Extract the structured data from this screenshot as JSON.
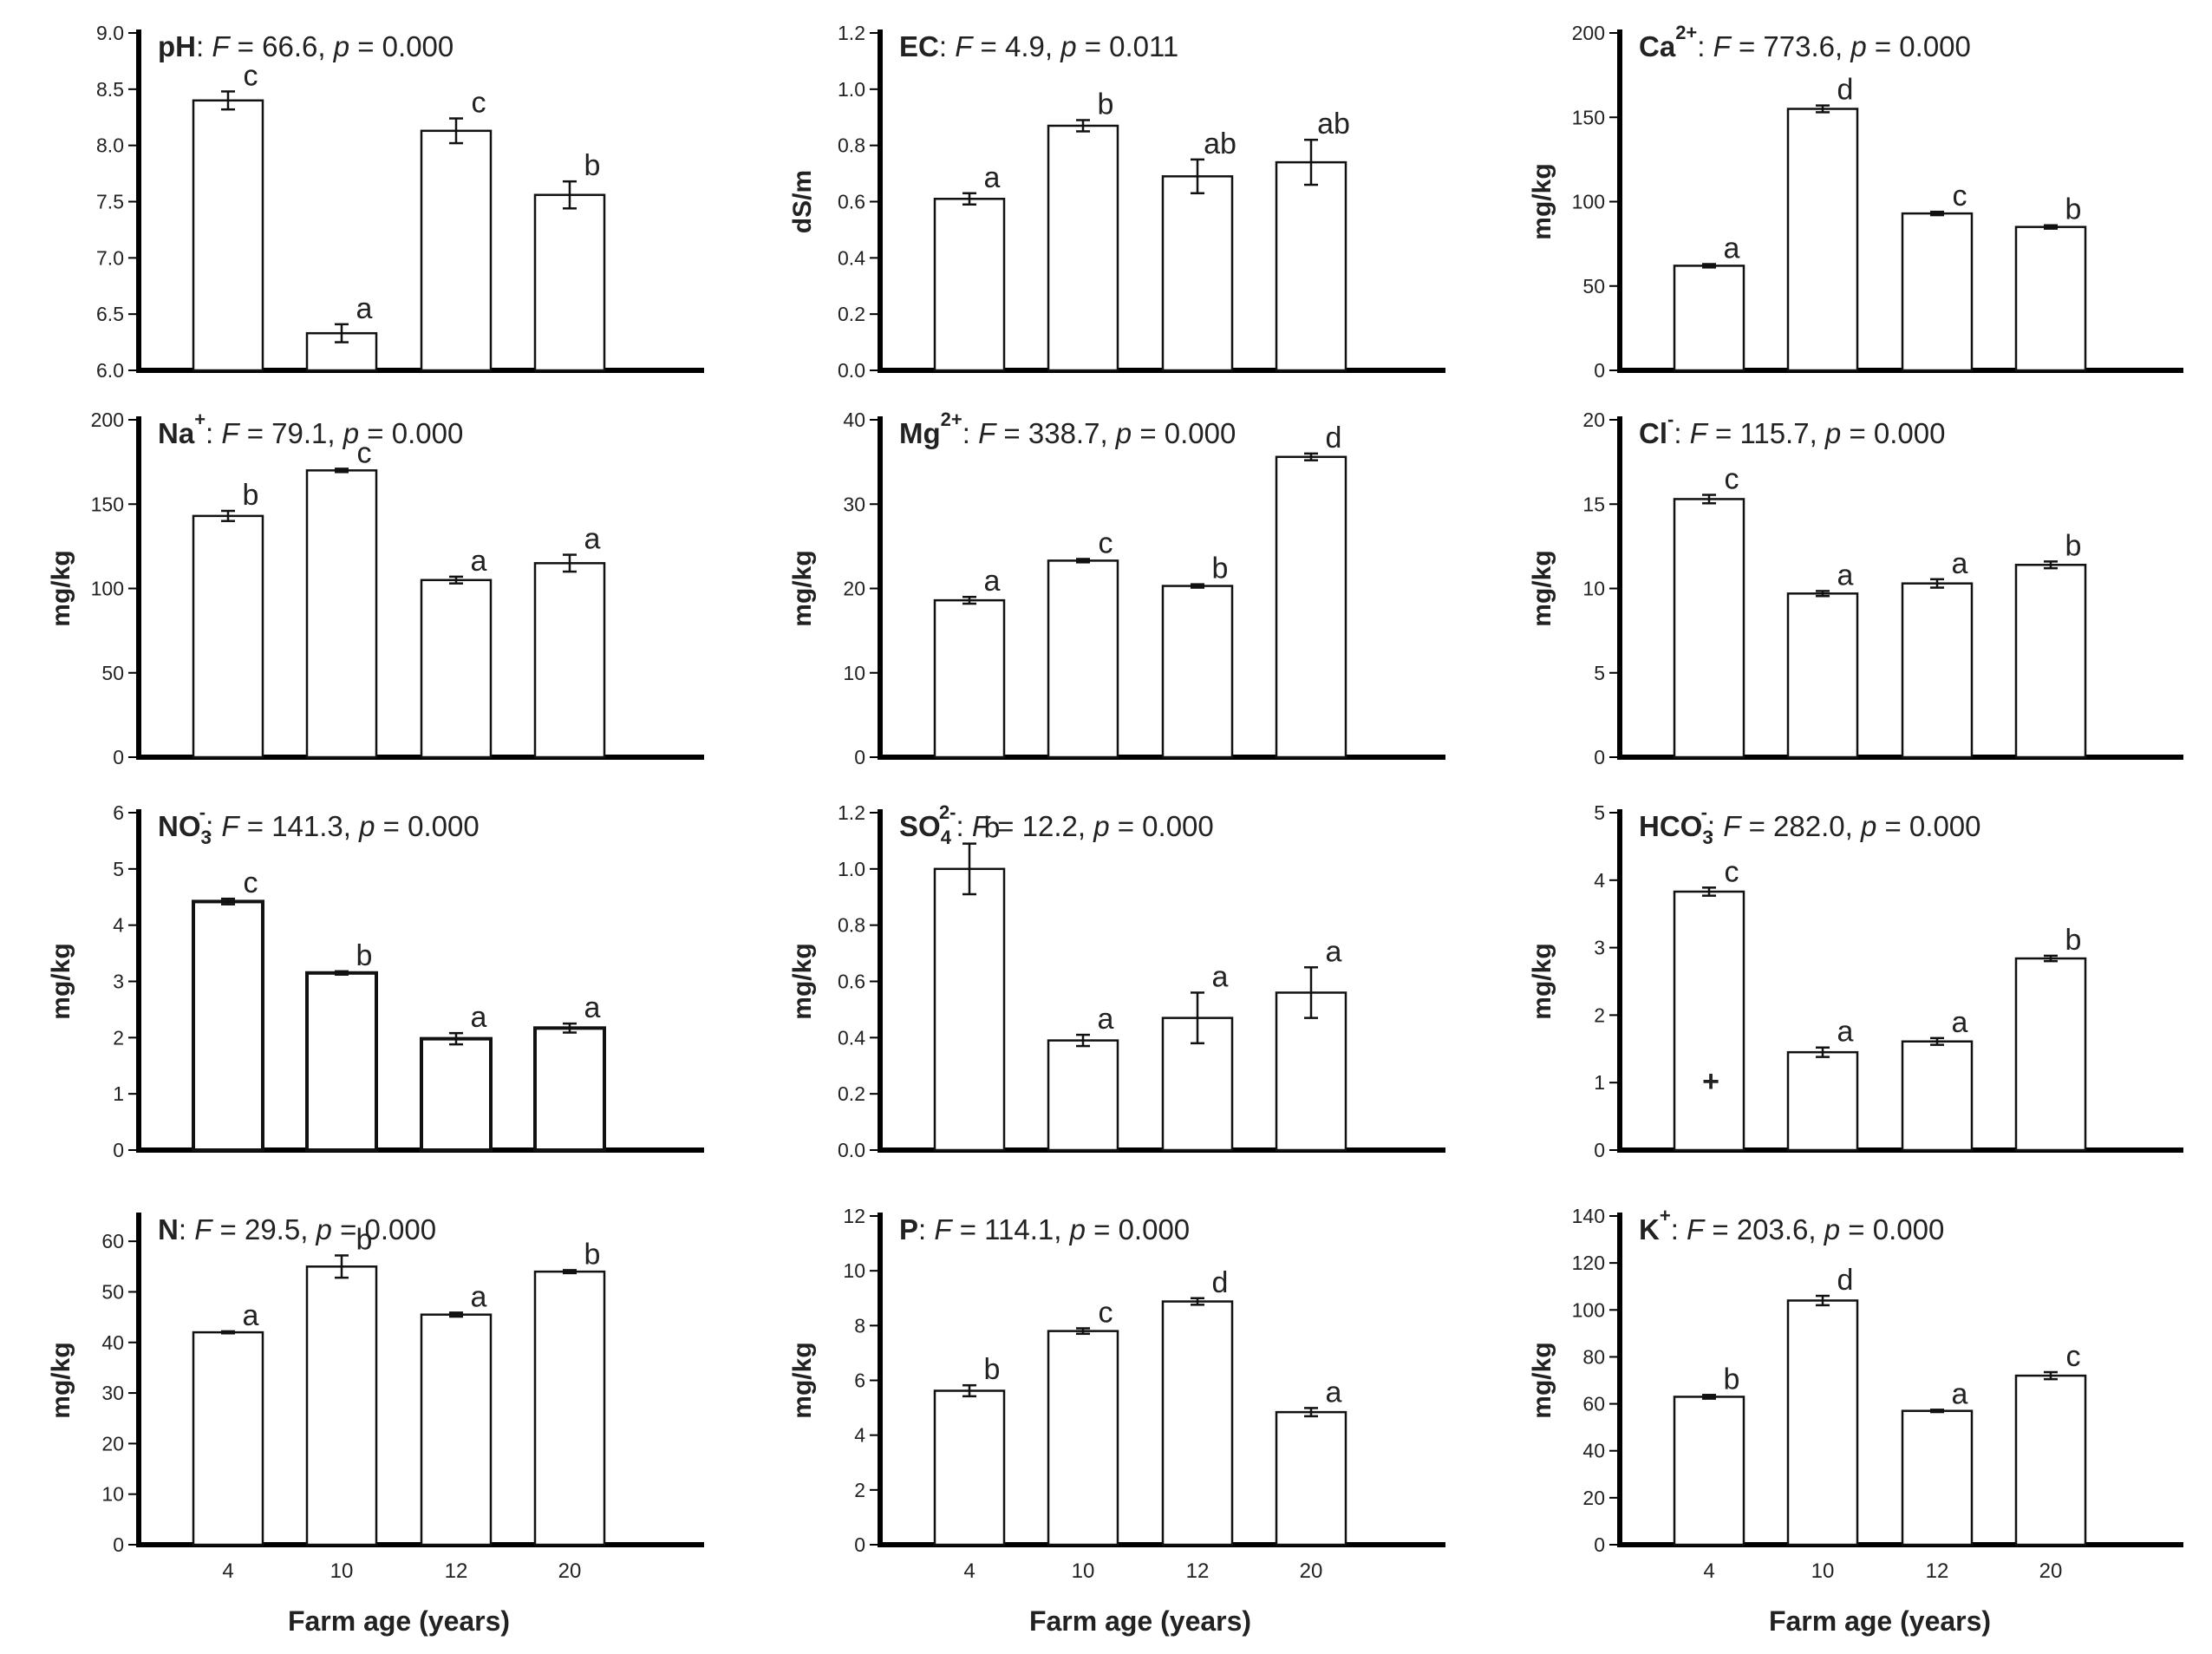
{
  "chart_data": [
    {
      "type": "bar",
      "title_parts": [
        {
          "t": "pH",
          "b": true
        },
        {
          "t": ": "
        },
        {
          "t": "F",
          "i": true
        },
        {
          "t": " = 66.6, "
        },
        {
          "t": "p",
          "i": true
        },
        {
          "t": " = 0.000"
        }
      ],
      "ylabel": "",
      "categories": [
        "4",
        "10",
        "12",
        "20"
      ],
      "ylim": [
        6.0,
        9.0
      ],
      "yticks": [
        "6.0",
        "6.5",
        "7.0",
        "7.5",
        "8.0",
        "8.5",
        "9.0"
      ],
      "values": [
        8.4,
        6.33,
        8.13,
        7.56
      ],
      "errors": [
        0.08,
        0.08,
        0.11,
        0.12
      ],
      "letters": [
        "c",
        "a",
        "c",
        "b"
      ]
    },
    {
      "type": "bar",
      "title_parts": [
        {
          "t": "EC",
          "b": true
        },
        {
          "t": ": "
        },
        {
          "t": "F",
          "i": true
        },
        {
          "t": " = 4.9, "
        },
        {
          "t": "p",
          "i": true
        },
        {
          "t": " = 0.011"
        }
      ],
      "ylabel": "dS/m",
      "categories": [
        "4",
        "10",
        "12",
        "20"
      ],
      "ylim": [
        0,
        1.2
      ],
      "yticks": [
        "0.0",
        "0.2",
        "0.4",
        "0.6",
        "0.8",
        "1.0",
        "1.2"
      ],
      "values": [
        0.61,
        0.87,
        0.69,
        0.74
      ],
      "errors": [
        0.02,
        0.02,
        0.06,
        0.08
      ],
      "letters": [
        "a",
        "b",
        "ab",
        "ab"
      ]
    },
    {
      "type": "bar",
      "title_parts": [
        {
          "t": "Ca",
          "b": true,
          "sup": "2+"
        },
        {
          "t": ": "
        },
        {
          "t": "F",
          "i": true
        },
        {
          "t": " = 773.6, "
        },
        {
          "t": "p",
          "i": true
        },
        {
          "t": " = 0.000"
        }
      ],
      "ylabel": "mg/kg",
      "categories": [
        "4",
        "10",
        "12",
        "20"
      ],
      "ylim": [
        0,
        200
      ],
      "yticks": [
        "0",
        "50",
        "100",
        "150",
        "200"
      ],
      "values": [
        62,
        155,
        93,
        85
      ],
      "errors": [
        1,
        2,
        1,
        1
      ],
      "letters": [
        "a",
        "d",
        "c",
        "b"
      ]
    },
    {
      "type": "bar",
      "title_parts": [
        {
          "t": "Na",
          "b": true,
          "sup": "+"
        },
        {
          "t": ": "
        },
        {
          "t": "F",
          "i": true
        },
        {
          "t": " = 79.1, "
        },
        {
          "t": "p",
          "i": true
        },
        {
          "t": " = 0.000"
        }
      ],
      "ylabel": "mg/kg",
      "categories": [
        "4",
        "10",
        "12",
        "20"
      ],
      "ylim": [
        0,
        200
      ],
      "yticks": [
        "0",
        "50",
        "100",
        "150",
        "200"
      ],
      "values": [
        143,
        170,
        105,
        115
      ],
      "errors": [
        3,
        1,
        2,
        5
      ],
      "letters": [
        "b",
        "c",
        "a",
        "a"
      ]
    },
    {
      "type": "bar",
      "title_parts": [
        {
          "t": "Mg",
          "b": true,
          "sup": "2+"
        },
        {
          "t": ": "
        },
        {
          "t": "F",
          "i": true
        },
        {
          "t": " = 338.7, "
        },
        {
          "t": "p",
          "i": true
        },
        {
          "t": " = 0.000"
        }
      ],
      "ylabel": "mg/kg",
      "categories": [
        "4",
        "10",
        "12",
        "20"
      ],
      "ylim": [
        0,
        40
      ],
      "yticks": [
        "0",
        "10",
        "20",
        "30",
        "40"
      ],
      "values": [
        18.6,
        23.3,
        20.3,
        35.6
      ],
      "errors": [
        0.4,
        0.2,
        0.2,
        0.4
      ],
      "letters": [
        "a",
        "c",
        "b",
        "d"
      ]
    },
    {
      "type": "bar",
      "title_parts": [
        {
          "t": "Cl",
          "b": true,
          "sup": "-"
        },
        {
          "t": ": "
        },
        {
          "t": "F",
          "i": true
        },
        {
          "t": " = 115.7, "
        },
        {
          "t": "p",
          "i": true
        },
        {
          "t": " = 0.000"
        }
      ],
      "ylabel": "mg/kg",
      "categories": [
        "4",
        "10",
        "12",
        "20"
      ],
      "ylim": [
        0,
        20
      ],
      "yticks": [
        "0",
        "5",
        "10",
        "15",
        "20"
      ],
      "values": [
        15.3,
        9.7,
        10.3,
        11.4
      ],
      "errors": [
        0.25,
        0.15,
        0.25,
        0.2
      ],
      "letters": [
        "c",
        "a",
        "a",
        "b"
      ]
    },
    {
      "type": "bar",
      "title_parts": [
        {
          "t": "NO",
          "b": true,
          "sub": "3",
          "sup": "-"
        },
        {
          "t": ": "
        },
        {
          "t": "F",
          "i": true
        },
        {
          "t": " = 141.3, "
        },
        {
          "t": "p",
          "i": true
        },
        {
          "t": " = 0.000"
        }
      ],
      "ylabel": "mg/kg",
      "categories": [
        "4",
        "10",
        "12",
        "20"
      ],
      "ylim": [
        0,
        6
      ],
      "yticks": [
        "0",
        "1",
        "2",
        "3",
        "4",
        "5",
        "6"
      ],
      "values": [
        4.42,
        3.15,
        1.98,
        2.17
      ],
      "errors": [
        0.05,
        0.03,
        0.1,
        0.08
      ],
      "letters": [
        "c",
        "b",
        "a",
        "a"
      ]
    },
    {
      "type": "bar",
      "title_parts": [
        {
          "t": "SO",
          "b": true,
          "sub": "4",
          "sup": "2-"
        },
        {
          "t": ": "
        },
        {
          "t": "F",
          "i": true
        },
        {
          "t": " = 12.2, "
        },
        {
          "t": "p",
          "i": true
        },
        {
          "t": " = 0.000"
        }
      ],
      "ylabel": "mg/kg",
      "categories": [
        "4",
        "10",
        "12",
        "20"
      ],
      "ylim": [
        0,
        1.2
      ],
      "yticks": [
        "0.0",
        "0.2",
        "0.4",
        "0.6",
        "0.8",
        "1.0",
        "1.2"
      ],
      "values": [
        1.0,
        0.39,
        0.47,
        0.56
      ],
      "errors": [
        0.09,
        0.02,
        0.09,
        0.09
      ],
      "letters": [
        "b",
        "a",
        "a",
        "a"
      ]
    },
    {
      "type": "bar",
      "title_parts": [
        {
          "t": "HCO",
          "b": true,
          "sub": "3",
          "sup": "-"
        },
        {
          "t": ": "
        },
        {
          "t": "F",
          "i": true
        },
        {
          "t": " = 282.0, "
        },
        {
          "t": "p",
          "i": true
        },
        {
          "t": " = 0.000"
        }
      ],
      "ylabel": "mg/kg",
      "categories": [
        "4",
        "10",
        "12",
        "20"
      ],
      "ylim": [
        0,
        5
      ],
      "yticks": [
        "0",
        "1",
        "2",
        "3",
        "4",
        "5"
      ],
      "values": [
        3.83,
        1.45,
        1.61,
        2.84
      ],
      "errors": [
        0.06,
        0.07,
        0.05,
        0.04
      ],
      "letters": [
        "c",
        "a",
        "a",
        "b"
      ],
      "annotation": "+"
    },
    {
      "type": "bar",
      "title_parts": [
        {
          "t": "N",
          "b": true
        },
        {
          "t": ": "
        },
        {
          "t": "F",
          "i": true
        },
        {
          "t": " = 29.5, "
        },
        {
          "t": "p",
          "i": true
        },
        {
          "t": " = 0.000"
        }
      ],
      "ylabel": "mg/kg",
      "categories": [
        "4",
        "10",
        "12",
        "20"
      ],
      "ylim": [
        0,
        65
      ],
      "yticks": [
        "0",
        "10",
        "20",
        "30",
        "40",
        "50",
        "60"
      ],
      "values": [
        42,
        55,
        45.5,
        54
      ],
      "errors": [
        0.2,
        2.2,
        0.4,
        0.3
      ],
      "letters": [
        "a",
        "b",
        "a",
        "b"
      ]
    },
    {
      "type": "bar",
      "title_parts": [
        {
          "t": "P",
          "b": true
        },
        {
          "t": ": "
        },
        {
          "t": "F",
          "i": true
        },
        {
          "t": " = 114.1, "
        },
        {
          "t": "p",
          "i": true
        },
        {
          "t": " = 0.000"
        }
      ],
      "ylabel": "mg/kg",
      "categories": [
        "4",
        "10",
        "12",
        "20"
      ],
      "ylim": [
        0,
        12
      ],
      "yticks": [
        "0",
        "2",
        "4",
        "6",
        "8",
        "10",
        "12"
      ],
      "values": [
        5.62,
        7.8,
        8.88,
        4.84
      ],
      "errors": [
        0.2,
        0.1,
        0.12,
        0.15
      ],
      "letters": [
        "b",
        "c",
        "d",
        "a"
      ]
    },
    {
      "type": "bar",
      "title_parts": [
        {
          "t": "K",
          "b": true,
          "sup": "+"
        },
        {
          "t": ": "
        },
        {
          "t": "F",
          "i": true
        },
        {
          "t": " = 203.6, "
        },
        {
          "t": "p",
          "i": true
        },
        {
          "t": " = 0.000"
        }
      ],
      "ylabel": "mg/kg",
      "categories": [
        "4",
        "10",
        "12",
        "20"
      ],
      "ylim": [
        0,
        140
      ],
      "yticks": [
        "0",
        "20",
        "40",
        "60",
        "80",
        "100",
        "120",
        "140"
      ],
      "values": [
        63,
        104,
        57,
        72
      ],
      "errors": [
        0.8,
        2,
        0.5,
        1.5
      ],
      "letters": [
        "b",
        "d",
        "a",
        "c"
      ]
    }
  ],
  "figure": {
    "xlabel": "Farm age (years)"
  }
}
